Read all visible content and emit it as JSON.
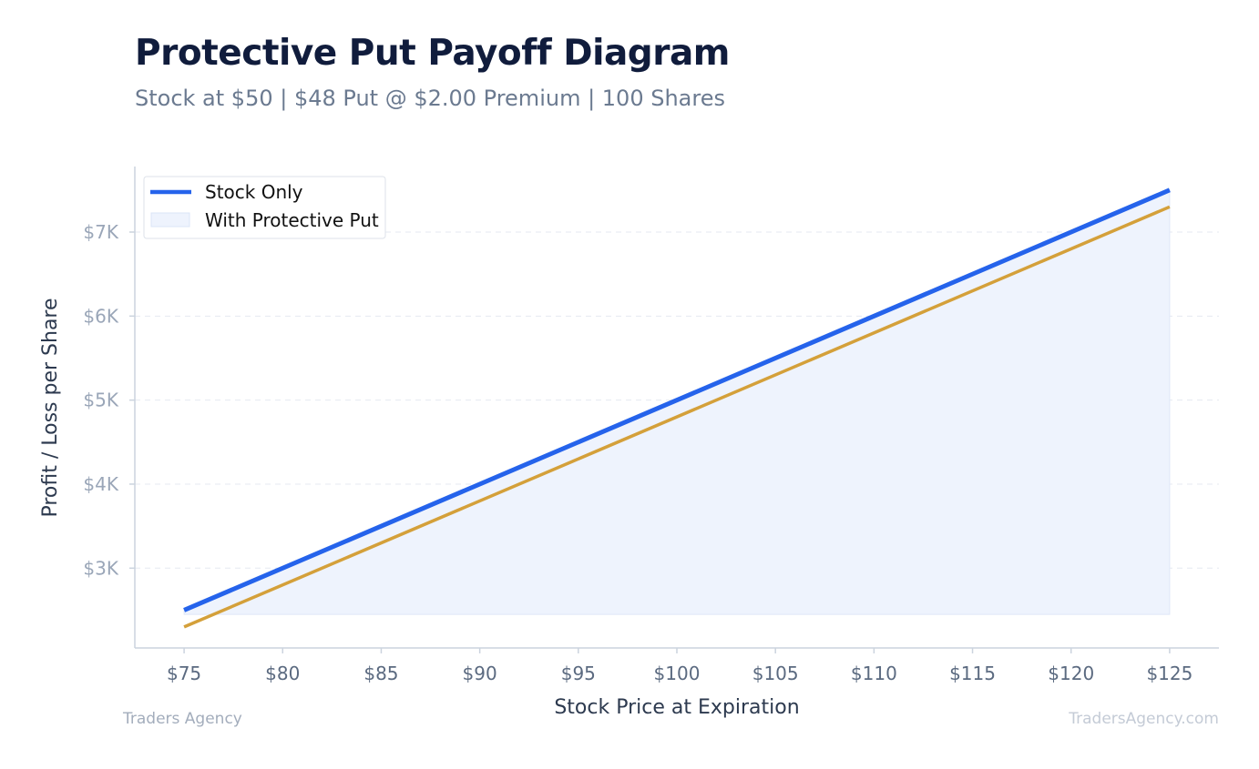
{
  "header": {
    "title": "Protective Put Payoff Diagram",
    "subtitle": "Stock at $50 | $48 Put @ $2.00 Premium | 100 Shares"
  },
  "footer": {
    "left": "Traders Agency",
    "right": "TradersAgency.com"
  },
  "colors": {
    "stock_only": "#2563eb",
    "protective_put": "#d4a03a",
    "fill": "#eef3fd",
    "grid": "#e5e9f0",
    "axis": "#cbd3de",
    "ytick": "#9aa6b8",
    "xtick": "#5b6a80"
  },
  "chart_data": {
    "type": "line",
    "xlabel": "Stock Price at Expiration",
    "ylabel": "Profit / Loss per Share",
    "xlim": [
      72.5,
      127.5
    ],
    "ylim": [
      2050,
      7780
    ],
    "x_ticks": [
      75,
      80,
      85,
      90,
      95,
      100,
      105,
      110,
      115,
      120,
      125
    ],
    "x_tick_labels": [
      "$75",
      "$80",
      "$85",
      "$90",
      "$95",
      "$100",
      "$105",
      "$110",
      "$115",
      "$120",
      "$125"
    ],
    "y_ticks": [
      3000,
      4000,
      5000,
      6000,
      7000
    ],
    "y_tick_labels": [
      "$3K",
      "$4K",
      "$5K",
      "$6K",
      "$7K"
    ],
    "grid": "horizontal dashed",
    "legend_position": "top-left",
    "series": [
      {
        "name": "Stock Only",
        "x": [
          75,
          125
        ],
        "y": [
          2500,
          7500
        ],
        "style": "line"
      },
      {
        "name": "With Protective Put",
        "x": [
          75,
          125
        ],
        "y": [
          2300,
          7300
        ],
        "style": "line+fill",
        "fill_base": 2450
      }
    ]
  }
}
